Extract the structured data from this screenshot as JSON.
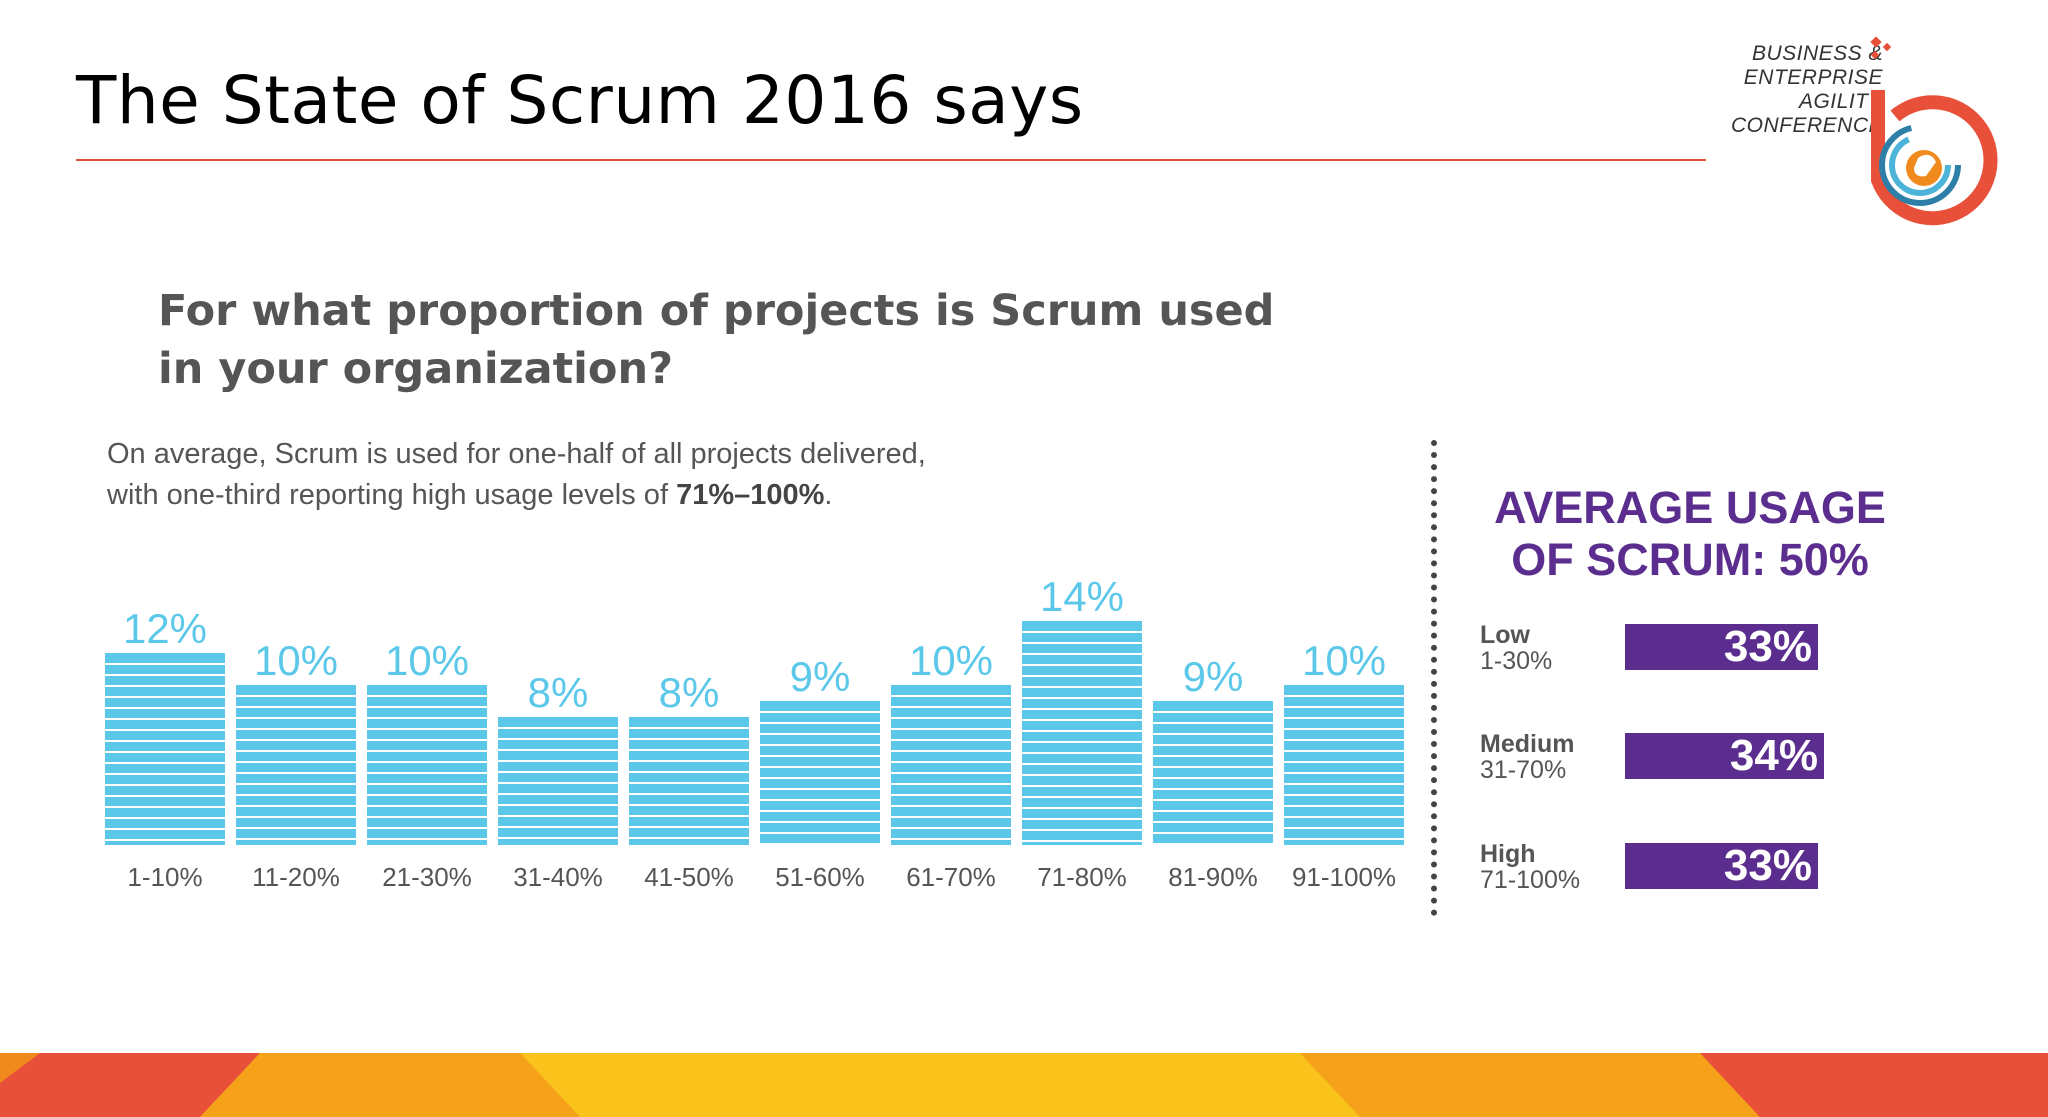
{
  "slide": {
    "title": "The State of Scrum 2016 says",
    "logo_lines": [
      "BUSINESS &",
      "ENTERPRISE",
      "AGILITY",
      "CONFERENCE"
    ]
  },
  "infographic": {
    "question_line1": "For what proportion of projects is Scrum used",
    "question_line2": "in your organization?",
    "summary_line1": "On average, Scrum is used for one-half of all projects delivered,",
    "summary_line2_prefix": "with one-third reporting high usage levels of ",
    "summary_line2_bold": "71%–100%",
    "summary_line2_suffix": ".",
    "average_title_line1": "AVERAGE USAGE",
    "average_title_line2": "OF SCRUM: 50%"
  },
  "chart_data": [
    {
      "type": "bar",
      "categories": [
        "1-10%",
        "11-20%",
        "21-30%",
        "31-40%",
        "41-50%",
        "51-60%",
        "61-70%",
        "71-80%",
        "81-90%",
        "91-100%"
      ],
      "values": [
        12,
        10,
        10,
        8,
        8,
        9,
        10,
        14,
        9,
        10
      ],
      "value_labels": [
        "12%",
        "10%",
        "10%",
        "8%",
        "8%",
        "9%",
        "10%",
        "14%",
        "9%",
        "10%"
      ],
      "bar_color": "#5bc8ea",
      "label_color": "#5bc8ea"
    },
    {
      "type": "bar",
      "orientation": "horizontal",
      "categories": [
        "Low",
        "Medium",
        "High"
      ],
      "ranges": [
        "1-30%",
        "31-70%",
        "71-100%"
      ],
      "values": [
        33,
        34,
        33
      ],
      "value_labels": [
        "33%",
        "34%",
        "33%"
      ],
      "bar_color": "#5b2d8e"
    }
  ],
  "colors": {
    "accent_red": "#e8503a",
    "bar_blue": "#5bc8ea",
    "purple": "#5b2d8e",
    "footer_orange": "#f08a1c",
    "footer_yellow": "#f9c31b"
  }
}
